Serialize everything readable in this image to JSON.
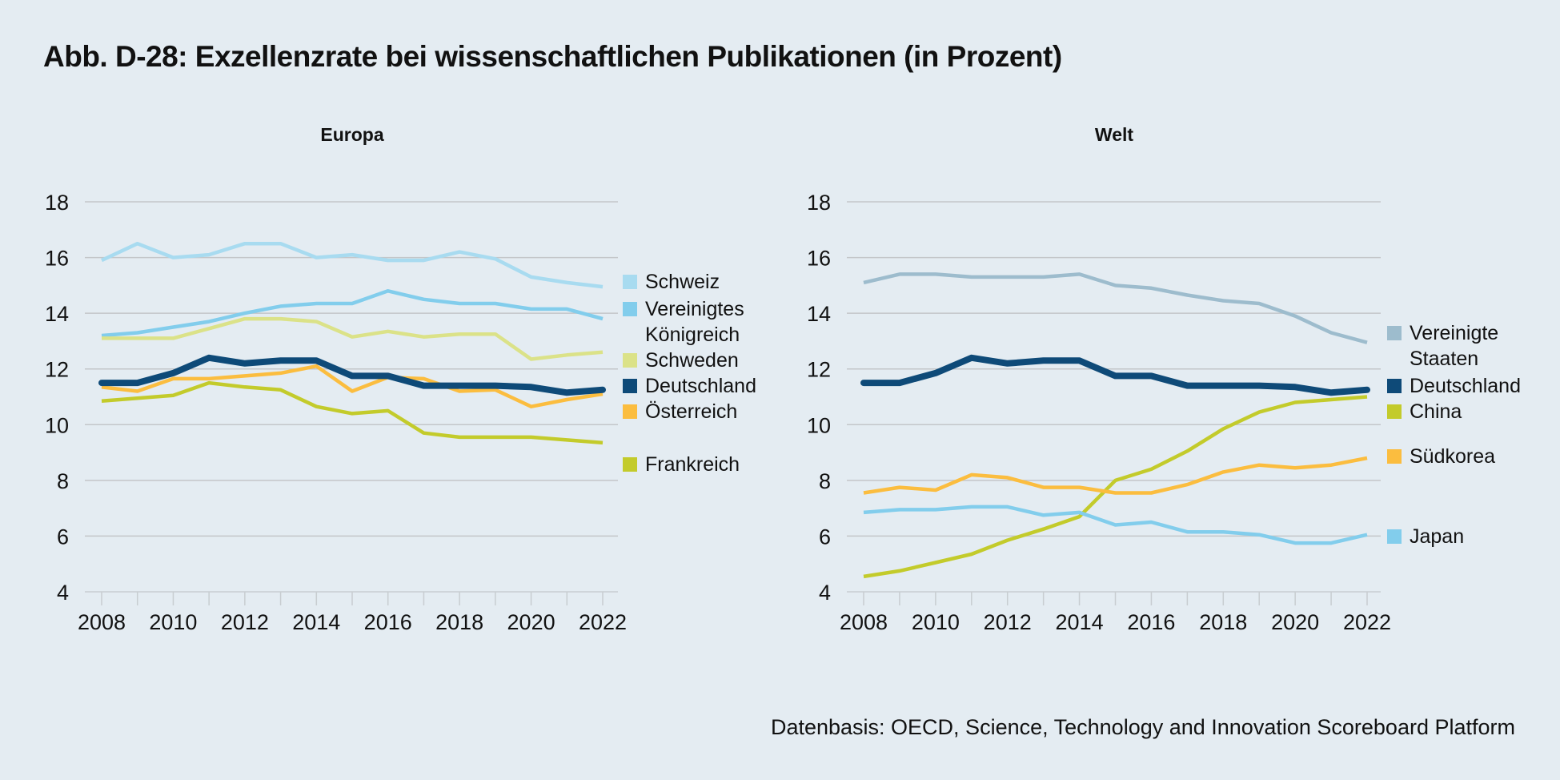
{
  "title": "Abb. D-28: Exzellenzrate bei wissenschaftlichen Publikationen (in Prozent)",
  "source": "Datenbasis: OECD, Science, Technology and Innovation Scoreboard Platform",
  "chart_data": [
    {
      "type": "line",
      "title": "Europa",
      "xlabel": "",
      "ylabel": "",
      "x": [
        2008,
        2009,
        2010,
        2011,
        2012,
        2013,
        2014,
        2015,
        2016,
        2017,
        2018,
        2019,
        2020,
        2021,
        2022
      ],
      "xticks": [
        "2008",
        "2010",
        "2012",
        "2014",
        "2016",
        "2018",
        "2020",
        "2022"
      ],
      "yticks": [
        "4",
        "6",
        "8",
        "10",
        "12",
        "14",
        "16",
        "18"
      ],
      "ylim": [
        4,
        18
      ],
      "grid": true,
      "legend_position": "right",
      "series": [
        {
          "name": "Schweiz",
          "color": "#a8dbf0",
          "width": "normal",
          "values": [
            15.9,
            16.5,
            16.0,
            16.1,
            16.5,
            16.5,
            16.0,
            16.1,
            15.9,
            15.9,
            16.2,
            15.95,
            15.3,
            15.1,
            14.95
          ]
        },
        {
          "name": "Vereinigtes Königreich",
          "color": "#82cdec",
          "width": "normal",
          "values": [
            13.2,
            13.3,
            13.5,
            13.7,
            14.0,
            14.25,
            14.35,
            14.35,
            14.8,
            14.5,
            14.35,
            14.35,
            14.15,
            14.15,
            13.8
          ]
        },
        {
          "name": "Schweden",
          "color": "#dbe288",
          "width": "normal",
          "values": [
            13.1,
            13.1,
            13.1,
            13.45,
            13.8,
            13.8,
            13.7,
            13.15,
            13.35,
            13.15,
            13.25,
            13.25,
            12.35,
            12.5,
            12.6
          ]
        },
        {
          "name": "Deutschland",
          "color": "#0e4a78",
          "width": "thick",
          "values": [
            11.5,
            11.5,
            11.85,
            12.4,
            12.2,
            12.3,
            12.3,
            11.75,
            11.75,
            11.4,
            11.4,
            11.4,
            11.35,
            11.15,
            11.25
          ]
        },
        {
          "name": "Österreich",
          "color": "#fbbd3f",
          "width": "normal",
          "values": [
            11.35,
            11.2,
            11.65,
            11.65,
            11.75,
            11.85,
            12.1,
            11.2,
            11.7,
            11.65,
            11.2,
            11.25,
            10.65,
            10.9,
            11.1
          ]
        },
        {
          "name": "Frankreich",
          "color": "#c3cb2b",
          "width": "normal",
          "values": [
            10.85,
            10.95,
            11.05,
            11.5,
            11.35,
            11.25,
            10.65,
            10.4,
            10.5,
            9.7,
            9.55,
            9.55,
            9.55,
            9.45,
            9.35
          ]
        }
      ]
    },
    {
      "type": "line",
      "title": "Welt",
      "xlabel": "",
      "ylabel": "",
      "x": [
        2008,
        2009,
        2010,
        2011,
        2012,
        2013,
        2014,
        2015,
        2016,
        2017,
        2018,
        2019,
        2020,
        2021,
        2022
      ],
      "xticks": [
        "2008",
        "2010",
        "2012",
        "2014",
        "2016",
        "2018",
        "2020",
        "2022"
      ],
      "yticks": [
        "4",
        "6",
        "8",
        "10",
        "12",
        "14",
        "16",
        "18"
      ],
      "ylim": [
        4,
        18
      ],
      "grid": true,
      "legend_position": "right",
      "series": [
        {
          "name": "Vereinigte Staaten",
          "color": "#9dbccd",
          "width": "normal",
          "values": [
            15.1,
            15.4,
            15.4,
            15.3,
            15.3,
            15.3,
            15.4,
            15.0,
            14.9,
            14.65,
            14.45,
            14.35,
            13.9,
            13.3,
            12.95
          ]
        },
        {
          "name": "Deutschland",
          "color": "#0e4a78",
          "width": "thick",
          "values": [
            11.5,
            11.5,
            11.85,
            12.4,
            12.2,
            12.3,
            12.3,
            11.75,
            11.75,
            11.4,
            11.4,
            11.4,
            11.35,
            11.15,
            11.25
          ]
        },
        {
          "name": "China",
          "color": "#c3cb2b",
          "width": "normal",
          "values": [
            4.55,
            4.75,
            5.05,
            5.35,
            5.85,
            6.25,
            6.7,
            8.0,
            8.4,
            9.05,
            9.85,
            10.45,
            10.8,
            10.9,
            11.0
          ]
        },
        {
          "name": "Südkorea",
          "color": "#fbbd3f",
          "width": "normal",
          "values": [
            7.55,
            7.75,
            7.65,
            8.2,
            8.1,
            7.75,
            7.75,
            7.55,
            7.55,
            7.85,
            8.3,
            8.55,
            8.45,
            8.55,
            8.8
          ]
        },
        {
          "name": "Japan",
          "color": "#82cdec",
          "width": "normal",
          "values": [
            6.85,
            6.95,
            6.95,
            7.05,
            7.05,
            6.75,
            6.85,
            6.4,
            6.5,
            6.15,
            6.15,
            6.05,
            5.75,
            5.75,
            6.05
          ]
        }
      ]
    }
  ]
}
